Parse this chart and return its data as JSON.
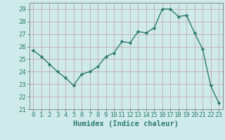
{
  "x": [
    0,
    1,
    2,
    3,
    4,
    5,
    6,
    7,
    8,
    9,
    10,
    11,
    12,
    13,
    14,
    15,
    16,
    17,
    18,
    19,
    20,
    21,
    22,
    23
  ],
  "y": [
    25.7,
    25.2,
    24.6,
    24.0,
    23.5,
    22.9,
    23.8,
    24.0,
    24.4,
    25.2,
    25.5,
    26.4,
    26.3,
    27.2,
    27.1,
    27.5,
    29.0,
    29.0,
    28.4,
    28.5,
    27.1,
    25.8,
    22.9,
    21.5
  ],
  "line_color": "#2e7d6e",
  "marker": "D",
  "marker_size": 2.2,
  "bg_color": "#ceeaea",
  "grid_color": "#c0a0a0",
  "xlabel": "Humidex (Indice chaleur)",
  "ylim": [
    21,
    29.5
  ],
  "xlim": [
    -0.5,
    23.5
  ],
  "yticks": [
    21,
    22,
    23,
    24,
    25,
    26,
    27,
    28,
    29
  ],
  "xticks": [
    0,
    1,
    2,
    3,
    4,
    5,
    6,
    7,
    8,
    9,
    10,
    11,
    12,
    13,
    14,
    15,
    16,
    17,
    18,
    19,
    20,
    21,
    22,
    23
  ],
  "xlabel_fontsize": 7.5,
  "tick_fontsize": 6.5,
  "line_width": 1.0
}
